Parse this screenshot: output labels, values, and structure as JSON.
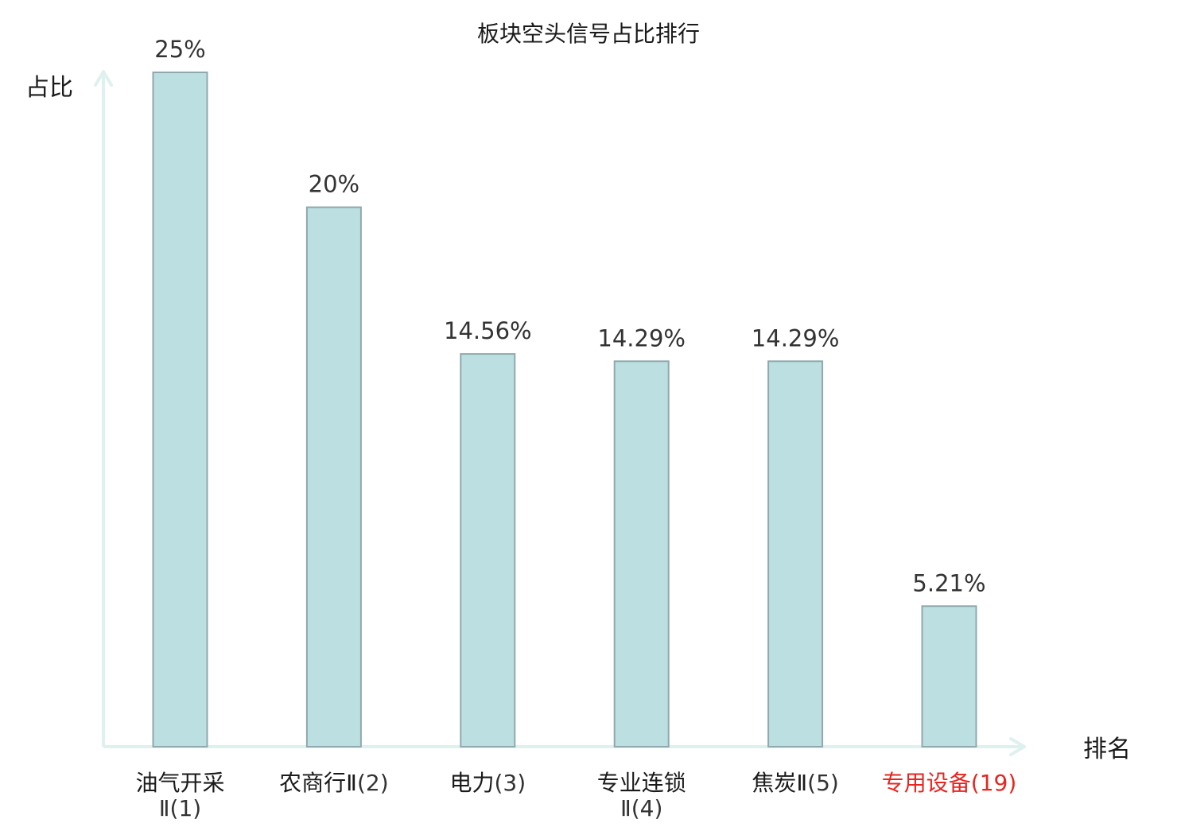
{
  "chart_data": {
    "type": "bar",
    "title": "板块空头信号占比排行",
    "ylabel": "占比",
    "xlabel": "排名",
    "ylim": [
      0,
      25
    ],
    "grid": false,
    "colors": {
      "bar_fill": "#bcdfe1",
      "bar_stroke": "#8fa9ac",
      "axis": "#dff1ef",
      "highlight": "#e8251f"
    },
    "categories": [
      {
        "name": "油气开采",
        "name2": "Ⅱ",
        "rank": "(1)",
        "highlight": false
      },
      {
        "name": "农商行Ⅱ",
        "name2": "",
        "rank": "(2)",
        "highlight": false
      },
      {
        "name": "电力",
        "name2": "",
        "rank": "(3)",
        "highlight": false
      },
      {
        "name": "专业连锁",
        "name2": "Ⅱ",
        "rank": "(4)",
        "highlight": false
      },
      {
        "name": "焦炭Ⅱ",
        "name2": "",
        "rank": "(5)",
        "highlight": false
      },
      {
        "name": "专用设备",
        "name2": "",
        "rank": "(19)",
        "highlight": true
      }
    ],
    "values": [
      25,
      20,
      14.56,
      14.29,
      14.29,
      5.21
    ],
    "value_labels": [
      "25%",
      "20%",
      "14.56%",
      "14.29%",
      "14.29%",
      "5.21%"
    ]
  }
}
